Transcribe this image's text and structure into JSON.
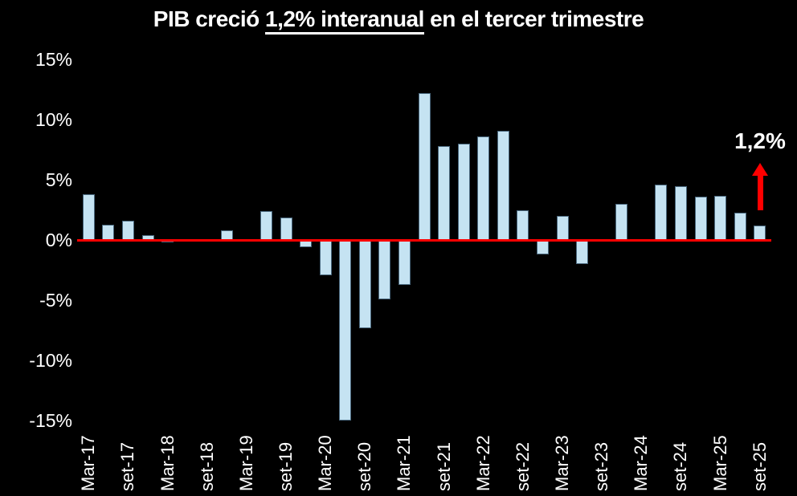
{
  "title": {
    "prefix": "PIB creció ",
    "underlined": "1,2% interanual",
    "suffix": " en el tercer trimestre"
  },
  "annotation": {
    "label": "1,2%"
  },
  "colors": {
    "background": "#000000",
    "bar_fill": "#C5E3F2",
    "bar_border": "#4A687E",
    "zero_line": "#FF0000",
    "arrow": "#FF0000",
    "text": "#FFFFFF"
  },
  "chart_data": {
    "type": "bar",
    "title": "PIB creció 1,2% interanual en el tercer trimestre",
    "ylabel": "",
    "xlabel": "",
    "ylim": [
      -15,
      15
    ],
    "grid": false,
    "legend": false,
    "zero_line": true,
    "yticks": [
      {
        "label": "15%",
        "value": 15
      },
      {
        "label": "10%",
        "value": 10
      },
      {
        "label": "5%",
        "value": 5
      },
      {
        "label": "0%",
        "value": 0
      },
      {
        "label": "-5%",
        "value": -5
      },
      {
        "label": "-10%",
        "value": -10
      },
      {
        "label": "-15%",
        "value": -15
      }
    ],
    "tick_labels": [
      "Mar-17",
      "set-17",
      "Mar-18",
      "set-18",
      "Mar-19",
      "set-19",
      "Mar-20",
      "set-20",
      "Mar-21",
      "set-21",
      "Mar-22",
      "set-22",
      "Mar-23",
      "set-23",
      "Mar-24",
      "set-24",
      "Mar-25",
      "set-25"
    ],
    "tick_every": 2,
    "values": [
      3.8,
      1.3,
      1.6,
      0.4,
      -0.2,
      0,
      0,
      0.8,
      0,
      2.4,
      1.9,
      -0.6,
      -2.9,
      -15.0,
      -7.3,
      -4.9,
      -3.7,
      12.2,
      7.8,
      8.0,
      8.6,
      9.1,
      2.5,
      -1.2,
      2.0,
      -2.0,
      0,
      3.0,
      0,
      4.6,
      4.5,
      3.6,
      3.7,
      2.3,
      1.2
    ],
    "annotation": {
      "text": "1,2%",
      "target": "set-25",
      "arrow": "up",
      "arrow_color": "#FF0000"
    }
  }
}
